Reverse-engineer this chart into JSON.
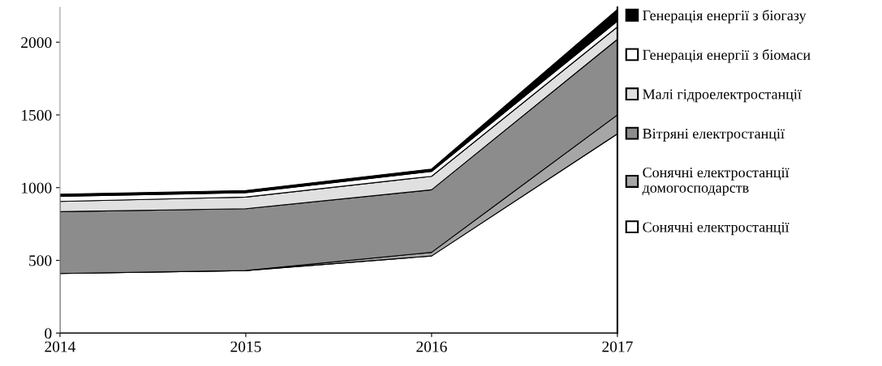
{
  "chart_data": {
    "type": "area",
    "stacked": true,
    "x": [
      2014,
      2015,
      2016,
      2017
    ],
    "xlim": [
      2014,
      2017
    ],
    "xticks": [
      2014,
      2015,
      2016,
      2017
    ],
    "ylim": [
      0,
      2240
    ],
    "yticks": [
      0,
      500,
      1000,
      1500,
      2000
    ],
    "grid": false,
    "legend": "right",
    "series": [
      {
        "name": "Сонячні електростанції",
        "color": "#ffffff",
        "values": [
          410,
          430,
          530,
          1370
        ]
      },
      {
        "name": "Сонячні електростанції домогосподарств",
        "color": "#a6a6a6",
        "values": [
          0,
          0,
          25,
          130
        ]
      },
      {
        "name": "Вітряні електростанції",
        "color": "#8c8c8c",
        "values": [
          425,
          425,
          430,
          520
        ]
      },
      {
        "name": "Малі гідроелектростанції",
        "color": "#e0e0e0",
        "values": [
          70,
          80,
          93,
          85
        ]
      },
      {
        "name": "Генерація енергії з біомаси",
        "color": "#ffffff",
        "values": [
          35,
          30,
          33,
          40
        ]
      },
      {
        "name": "Генерація енергії з біогазу",
        "color": "#000000",
        "values": [
          15,
          15,
          17,
          80
        ]
      }
    ]
  }
}
